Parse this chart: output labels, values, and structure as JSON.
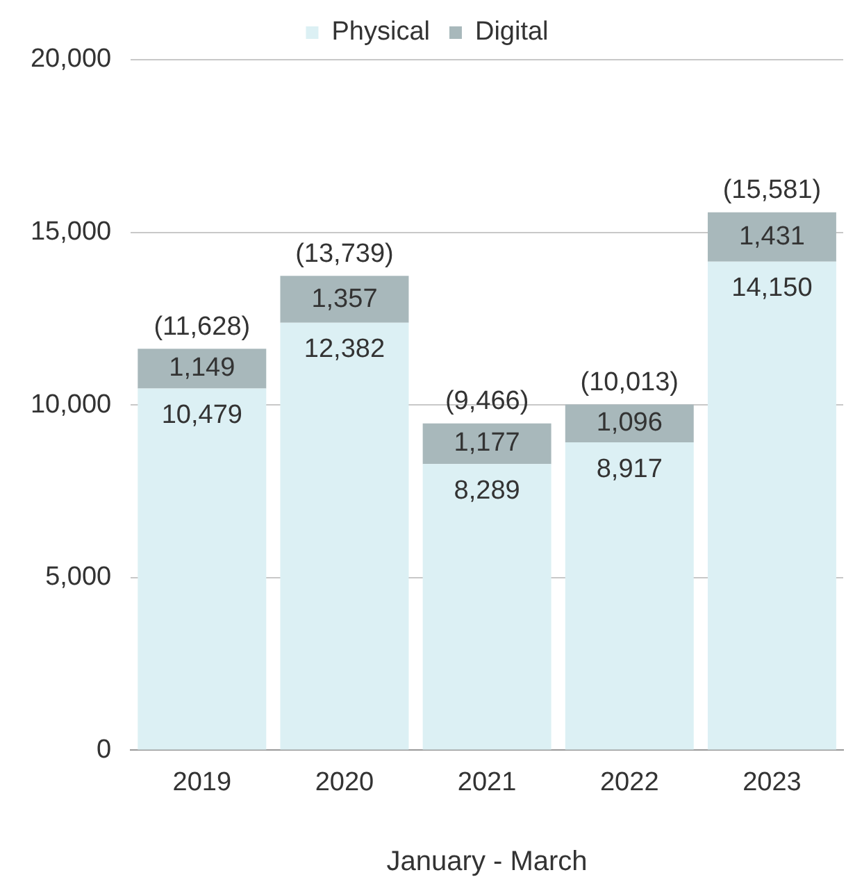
{
  "chart_data": {
    "type": "bar",
    "stacked": true,
    "categories": [
      "2019",
      "2020",
      "2021",
      "2022",
      "2023"
    ],
    "series": [
      {
        "name": "Physical",
        "color": "#dcf0f4",
        "values": [
          10479,
          12382,
          8289,
          8917,
          14150
        ],
        "value_labels": [
          "10,479",
          "12,382",
          "8,289",
          "8,917",
          "14,150"
        ]
      },
      {
        "name": "Digital",
        "color": "#a8b8bb",
        "values": [
          1149,
          1357,
          1177,
          1096,
          1431
        ],
        "value_labels": [
          "1,149",
          "1,357",
          "1,177",
          "1,096",
          "1,431"
        ]
      }
    ],
    "ylim": [
      0,
      20000
    ],
    "yticks": [
      0,
      {
        "value": 5000,
        "label": "5,000"
      },
      {
        "value": 10000,
        "label": "10,000"
      },
      {
        "value": 15000,
        "label": "15,000"
      },
      {
        "value": 20000,
        "label": "20,000"
      }
    ],
    "grid": "y",
    "legend": "top",
    "totals": [
      "(11,628)",
      "(13,739)",
      "(9,466)",
      "(10,013)",
      "(15,581)"
    ],
    "xlabel": "January - March"
  }
}
